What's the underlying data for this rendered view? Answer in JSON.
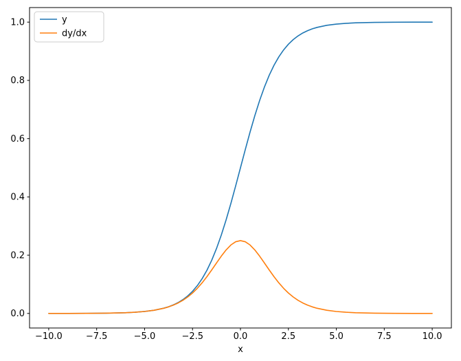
{
  "figure": {
    "background": "#ffffff"
  },
  "chart_data": {
    "type": "line",
    "title": "",
    "xlabel": "x",
    "ylabel": "",
    "xlim": [
      -11,
      11
    ],
    "ylim": [
      -0.05,
      1.05
    ],
    "grid": false,
    "x_ticks": {
      "values": [
        -10,
        -7.5,
        -5,
        -2.5,
        0,
        2.5,
        5,
        7.5,
        10
      ],
      "labels": [
        "−10.0",
        "−7.5",
        "−5.0",
        "−2.5",
        "0.0",
        "2.5",
        "5.0",
        "7.5",
        "10.0"
      ]
    },
    "y_ticks": {
      "values": [
        0,
        0.2,
        0.4,
        0.6,
        0.8,
        1.0
      ],
      "labels": [
        "0.0",
        "0.2",
        "0.4",
        "0.6",
        "0.8",
        "1.0"
      ]
    },
    "x": [
      -10,
      -9,
      -8,
      -7,
      -6,
      -5.5,
      -5,
      -4.5,
      -4,
      -3.75,
      -3.5,
      -3.25,
      -3,
      -2.75,
      -2.5,
      -2.25,
      -2,
      -1.75,
      -1.5,
      -1.25,
      -1,
      -0.75,
      -0.5,
      -0.25,
      0,
      0.25,
      0.5,
      0.75,
      1,
      1.25,
      1.5,
      1.75,
      2,
      2.25,
      2.5,
      2.75,
      3,
      3.25,
      3.5,
      3.75,
      4,
      4.5,
      5,
      5.5,
      6,
      7,
      8,
      9,
      10
    ],
    "series": [
      {
        "name": "y",
        "color": "#1f77b4",
        "values": [
          4.5e-05,
          0.000123,
          0.000335,
          0.000911,
          0.002473,
          0.00407,
          0.006693,
          0.010987,
          0.017986,
          0.022977,
          0.029312,
          0.037327,
          0.047426,
          0.060087,
          0.075858,
          0.095349,
          0.119203,
          0.148047,
          0.182426,
          0.2227,
          0.268941,
          0.320821,
          0.377541,
          0.437823,
          0.5,
          0.562177,
          0.622459,
          0.679179,
          0.731059,
          0.7773,
          0.817574,
          0.851953,
          0.880797,
          0.904651,
          0.924142,
          0.939913,
          0.952574,
          0.962673,
          0.970688,
          0.977023,
          0.982014,
          0.989013,
          0.993307,
          0.99593,
          0.997527,
          0.999089,
          0.999665,
          0.999877,
          0.999955
        ]
      },
      {
        "name": "dy/dx",
        "color": "#ff7f0e",
        "values": [
          4.5e-05,
          0.000123,
          0.000335,
          0.00091,
          0.002467,
          0.004054,
          0.006648,
          0.010866,
          0.017663,
          0.022449,
          0.028453,
          0.035934,
          0.045177,
          0.056476,
          0.070104,
          0.086258,
          0.104994,
          0.12613,
          0.149146,
          0.173103,
          0.196612,
          0.217895,
          0.235004,
          0.246134,
          0.25,
          0.246134,
          0.235004,
          0.217895,
          0.196612,
          0.173103,
          0.149146,
          0.12613,
          0.104994,
          0.086258,
          0.070104,
          0.056476,
          0.045177,
          0.035934,
          0.028453,
          0.022449,
          0.017663,
          0.010866,
          0.006648,
          0.004054,
          0.002467,
          0.00091,
          0.000335,
          0.000123,
          4.5e-05
        ]
      }
    ],
    "legend": {
      "position": "upper-left",
      "entries": [
        "y",
        "dy/dx"
      ],
      "border_color": "#cccccc",
      "background": "#ffffff"
    },
    "spine_color": "#000000",
    "tick_color": "#000000",
    "text_color": "#000000"
  }
}
